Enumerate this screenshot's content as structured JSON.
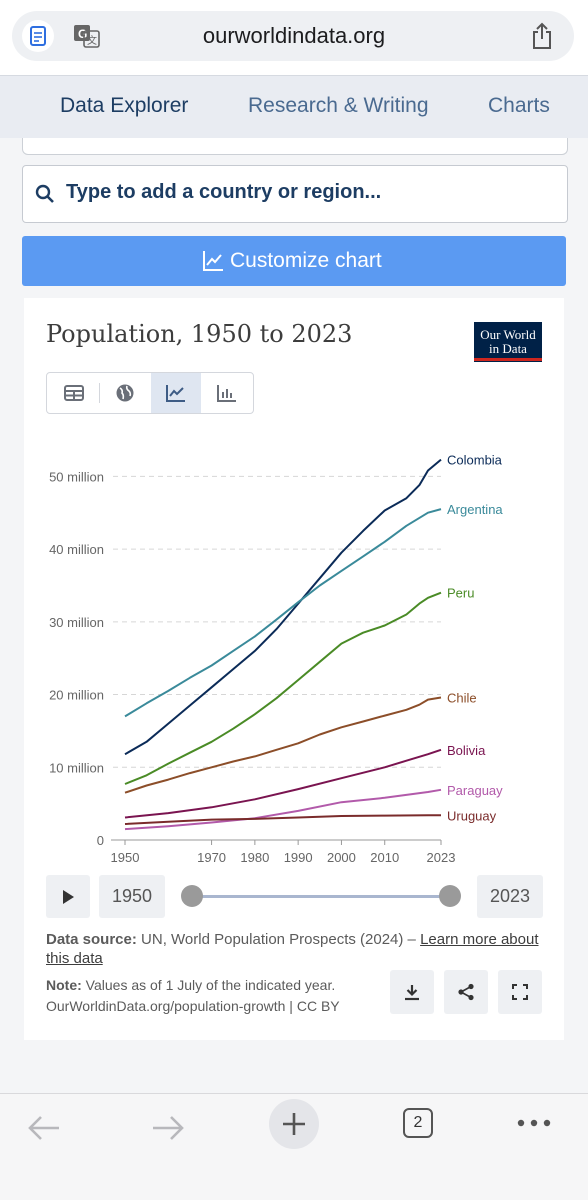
{
  "browser": {
    "url": "ourworldindata.org",
    "tab_count": "2"
  },
  "nav": {
    "tabs": [
      {
        "label": "Data Explorer"
      },
      {
        "label": "Research & Writing"
      },
      {
        "label": "Charts"
      }
    ]
  },
  "search": {
    "placeholder": "Type to add a country or region..."
  },
  "customize": {
    "label": "Customize chart"
  },
  "logo": {
    "line1": "Our World",
    "line2": "in Data"
  },
  "timeline": {
    "start": "1950",
    "end": "2023"
  },
  "source": {
    "label": "Data source:",
    "text": " UN, World Population Prospects (2024) – ",
    "link": "Learn more about this data"
  },
  "note": {
    "label": "Note:",
    "text": " Values as of 1 July of the indicated year.",
    "url": "OurWorldinData.org/population-growth | CC BY"
  },
  "colors": {
    "accent": "#5b9af2",
    "brand": "#002147"
  },
  "chart_data": {
    "type": "line",
    "title": "Population, 1950 to 2023",
    "x_ticks": [
      1950,
      1970,
      1980,
      1990,
      2000,
      2010,
      2023
    ],
    "y_ticks": [
      {
        "value": 0,
        "label": "0"
      },
      {
        "value": 10,
        "label": "10 million"
      },
      {
        "value": 20,
        "label": "20 million"
      },
      {
        "value": 30,
        "label": "30 million"
      },
      {
        "value": 40,
        "label": "40 million"
      },
      {
        "value": 50,
        "label": "50 million"
      }
    ],
    "xlim": [
      1950,
      2023
    ],
    "ylim": [
      0,
      55
    ],
    "units": "million",
    "grid": "horizontal dashed",
    "series": [
      {
        "name": "Colombia",
        "color": "#0b2b58",
        "x": [
          1950,
          1955,
          1960,
          1965,
          1970,
          1975,
          1980,
          1985,
          1990,
          1995,
          2000,
          2005,
          2010,
          2015,
          2018,
          2020,
          2023
        ],
        "y": [
          11.8,
          13.5,
          16.0,
          18.5,
          21.0,
          23.5,
          26.0,
          29.0,
          32.5,
          36.0,
          39.5,
          42.5,
          45.3,
          47.0,
          48.8,
          50.8,
          52.3
        ]
      },
      {
        "name": "Argentina",
        "color": "#3a8a9a",
        "x": [
          1950,
          1955,
          1960,
          1965,
          1970,
          1975,
          1980,
          1985,
          1990,
          1995,
          2000,
          2005,
          2010,
          2015,
          2020,
          2023
        ],
        "y": [
          17.0,
          18.8,
          20.5,
          22.3,
          24.0,
          26.0,
          28.0,
          30.3,
          32.7,
          35.0,
          37.0,
          39.0,
          41.0,
          43.2,
          45.0,
          45.5
        ]
      },
      {
        "name": "Peru",
        "color": "#4a8b26",
        "x": [
          1950,
          1955,
          1960,
          1965,
          1970,
          1975,
          1980,
          1985,
          1990,
          1995,
          2000,
          2005,
          2010,
          2015,
          2018,
          2020,
          2023
        ],
        "y": [
          7.7,
          8.9,
          10.5,
          12.0,
          13.5,
          15.3,
          17.3,
          19.5,
          22.0,
          24.5,
          27.0,
          28.5,
          29.5,
          31.0,
          32.5,
          33.3,
          34.0
        ]
      },
      {
        "name": "Chile",
        "color": "#8c4e29",
        "x": [
          1950,
          1955,
          1960,
          1965,
          1970,
          1975,
          1980,
          1985,
          1990,
          1995,
          2000,
          2005,
          2010,
          2015,
          2018,
          2020,
          2023
        ],
        "y": [
          6.5,
          7.5,
          8.3,
          9.2,
          10.0,
          10.8,
          11.5,
          12.4,
          13.3,
          14.5,
          15.5,
          16.3,
          17.1,
          17.9,
          18.6,
          19.3,
          19.6
        ]
      },
      {
        "name": "Bolivia",
        "color": "#7a1450",
        "x": [
          1950,
          1960,
          1970,
          1980,
          1990,
          2000,
          2010,
          2015,
          2020,
          2023
        ],
        "y": [
          3.1,
          3.7,
          4.5,
          5.6,
          7.0,
          8.5,
          10.0,
          10.9,
          11.8,
          12.4
        ]
      },
      {
        "name": "Paraguay",
        "color": "#b25aaa",
        "x": [
          1950,
          1960,
          1970,
          1980,
          1990,
          2000,
          2010,
          2020,
          2023
        ],
        "y": [
          1.5,
          1.9,
          2.4,
          3.0,
          4.0,
          5.2,
          5.8,
          6.6,
          6.9
        ]
      },
      {
        "name": "Uruguay",
        "color": "#7a2b2b",
        "x": [
          1950,
          1960,
          1970,
          1980,
          1990,
          2000,
          2010,
          2020,
          2023
        ],
        "y": [
          2.2,
          2.5,
          2.8,
          2.9,
          3.1,
          3.3,
          3.35,
          3.4,
          3.4
        ]
      }
    ]
  }
}
